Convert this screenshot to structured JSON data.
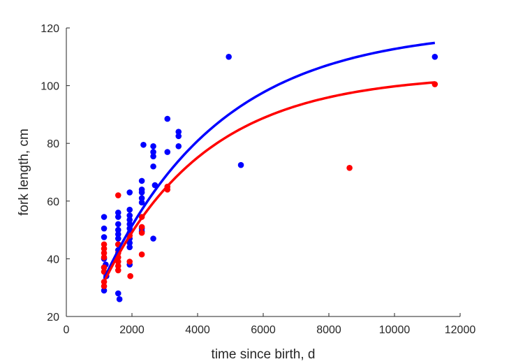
{
  "chart_data": {
    "type": "scatter",
    "xlabel": "time since birth, d",
    "ylabel": "fork length, cm",
    "xlim": [
      0,
      12000
    ],
    "ylim": [
      20,
      120
    ],
    "xticks": [
      0,
      2000,
      4000,
      6000,
      8000,
      10000,
      12000
    ],
    "yticks": [
      20,
      40,
      60,
      80,
      100,
      120
    ],
    "xtick_labels": [
      "0",
      "2000",
      "4000",
      "6000",
      "8000",
      "10000",
      "12000"
    ],
    "ytick_labels": [
      "20",
      "40",
      "60",
      "80",
      "100",
      "120"
    ],
    "grid": false,
    "box": false,
    "series": [
      {
        "color": "#0000ff",
        "kind": "points",
        "points": [
          [
            1150,
            54.5
          ],
          [
            1150,
            50.5
          ],
          [
            1150,
            47.5
          ],
          [
            1150,
            40
          ],
          [
            1150,
            37
          ],
          [
            1150,
            29
          ],
          [
            1200,
            38
          ],
          [
            1220,
            34
          ],
          [
            1580,
            56
          ],
          [
            1580,
            54.5
          ],
          [
            1580,
            52
          ],
          [
            1580,
            50
          ],
          [
            1580,
            48.5
          ],
          [
            1580,
            47
          ],
          [
            1580,
            45
          ],
          [
            1580,
            43
          ],
          [
            1580,
            28
          ],
          [
            1620,
            26
          ],
          [
            1930,
            63
          ],
          [
            1930,
            57
          ],
          [
            1930,
            55
          ],
          [
            1930,
            53.5
          ],
          [
            1930,
            52
          ],
          [
            1930,
            50.5
          ],
          [
            1930,
            49
          ],
          [
            1930,
            47
          ],
          [
            1930,
            45.5
          ],
          [
            1930,
            44
          ],
          [
            1930,
            38
          ],
          [
            2300,
            67
          ],
          [
            2300,
            64
          ],
          [
            2300,
            63
          ],
          [
            2300,
            61
          ],
          [
            2300,
            59.5
          ],
          [
            2300,
            50.5
          ],
          [
            2300,
            49.5
          ],
          [
            2350,
            79.5
          ],
          [
            2650,
            79
          ],
          [
            2650,
            77
          ],
          [
            2650,
            75.5
          ],
          [
            2650,
            72
          ],
          [
            2650,
            47
          ],
          [
            2700,
            65.5
          ],
          [
            3080,
            88.5
          ],
          [
            3080,
            77
          ],
          [
            3420,
            84
          ],
          [
            3420,
            82.5
          ],
          [
            3420,
            79
          ],
          [
            4950,
            110
          ],
          [
            5320,
            72.5
          ],
          [
            11230,
            110
          ]
        ]
      },
      {
        "color": "#ff0000",
        "kind": "points",
        "points": [
          [
            1150,
            45
          ],
          [
            1150,
            43.5
          ],
          [
            1150,
            42
          ],
          [
            1150,
            40.5
          ],
          [
            1150,
            37
          ],
          [
            1150,
            35.5
          ],
          [
            1150,
            32
          ],
          [
            1150,
            30.5
          ],
          [
            1580,
            62
          ],
          [
            1580,
            45
          ],
          [
            1580,
            42
          ],
          [
            1580,
            40.5
          ],
          [
            1580,
            39
          ],
          [
            1580,
            37.5
          ],
          [
            1580,
            36
          ],
          [
            1930,
            48
          ],
          [
            1930,
            39
          ],
          [
            1950,
            34
          ],
          [
            2300,
            54.5
          ],
          [
            2300,
            51
          ],
          [
            2300,
            49
          ],
          [
            2300,
            41.5
          ],
          [
            3080,
            65
          ],
          [
            3080,
            64
          ],
          [
            8630,
            71.5
          ],
          [
            11230,
            100.5
          ]
        ]
      },
      {
        "color": "#0000ff",
        "kind": "curve",
        "model": "von-bertalanffy",
        "Linf": 120,
        "k": 0.00028,
        "t0": 0,
        "x_range": [
          1150,
          11230
        ]
      },
      {
        "color": "#ff0000",
        "kind": "curve",
        "model": "von-bertalanffy",
        "Linf": 104,
        "k": 0.00032,
        "t0": 0,
        "x_range": [
          1150,
          11230
        ]
      }
    ]
  }
}
